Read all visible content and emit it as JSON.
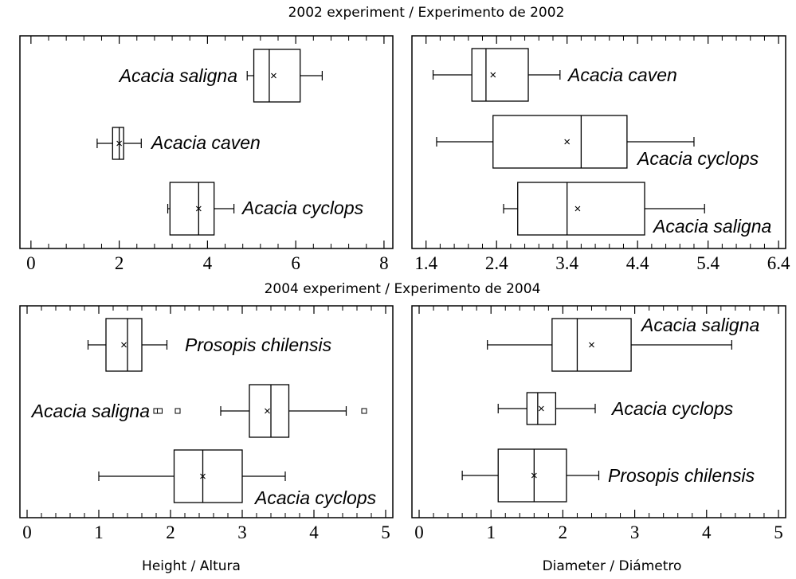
{
  "figure": {
    "top_caption": "2002 experiment / Experimento de 2002",
    "middle_caption": "2004 experiment / Experimento de 2004",
    "bottom_left_caption": "Height / Altura",
    "bottom_right_caption": "Diameter / Diámetro"
  },
  "chart_data": [
    {
      "type": "box",
      "panel": "2002-height",
      "xlim": [
        -0.25,
        8.2
      ],
      "xticks": [
        0,
        2,
        4,
        6,
        8
      ],
      "tick_labels": [
        "0",
        "2",
        "4",
        "6",
        "8"
      ],
      "minor_step": 0.4,
      "series": [
        {
          "name": "Acacia saligna",
          "min": 4.9,
          "q1": 5.05,
          "median": 5.4,
          "mean": 5.5,
          "q3": 6.1,
          "max": 6.6,
          "outliers": []
        },
        {
          "name": "Acacia caven",
          "min": 1.5,
          "q1": 1.85,
          "median": 2.0,
          "mean": 2.0,
          "q3": 2.1,
          "max": 2.5,
          "outliers": []
        },
        {
          "name": "Acacia cyclops",
          "min": 3.1,
          "q1": 3.15,
          "median": 3.8,
          "mean": 3.8,
          "q3": 4.15,
          "max": 4.6,
          "outliers": []
        }
      ]
    },
    {
      "type": "box",
      "panel": "2002-diameter",
      "xlim": [
        1.2,
        6.5
      ],
      "xticks": [
        1.4,
        2.4,
        3.4,
        4.4,
        5.4,
        6.4
      ],
      "tick_labels": [
        "1.4",
        "2.4",
        "3.4",
        "4.4",
        "5.4",
        "6.4"
      ],
      "minor_step": 0.2,
      "series": [
        {
          "name": "Acacia caven",
          "min": 1.5,
          "q1": 2.05,
          "median": 2.25,
          "mean": 2.35,
          "q3": 2.85,
          "max": 3.3,
          "outliers": []
        },
        {
          "name": "Acacia cyclops",
          "min": 1.55,
          "q1": 2.35,
          "median": 3.6,
          "mean": 3.4,
          "q3": 4.25,
          "max": 5.2,
          "outliers": []
        },
        {
          "name": "Acacia saligna",
          "min": 2.5,
          "q1": 2.7,
          "median": 3.4,
          "mean": 3.55,
          "q3": 4.5,
          "max": 5.35,
          "outliers": []
        }
      ]
    },
    {
      "type": "box",
      "panel": "2004-height",
      "xlim": [
        -0.1,
        5.1
      ],
      "xticks": [
        0,
        1,
        2,
        3,
        4,
        5
      ],
      "tick_labels": [
        "0",
        "1",
        "2",
        "3",
        "4",
        "5"
      ],
      "minor_step": 0.2,
      "series": [
        {
          "name": "Prosopis chilensis",
          "min": 0.85,
          "q1": 1.1,
          "median": 1.4,
          "mean": 1.35,
          "q3": 1.6,
          "max": 1.95,
          "outliers": []
        },
        {
          "name": "Acacia saligna",
          "min": 2.7,
          "q1": 3.1,
          "median": 3.4,
          "mean": 3.35,
          "q3": 3.65,
          "max": 4.45,
          "outliers": [
            1.8,
            1.85,
            2.1,
            4.7
          ]
        },
        {
          "name": "Acacia cyclops",
          "min": 1.0,
          "q1": 2.05,
          "median": 2.45,
          "mean": 2.45,
          "q3": 3.0,
          "max": 3.6,
          "outliers": []
        }
      ]
    },
    {
      "type": "box",
      "panel": "2004-diameter",
      "xlim": [
        -0.1,
        5.1
      ],
      "xticks": [
        0,
        1,
        2,
        3,
        4,
        5
      ],
      "tick_labels": [
        "0",
        "1",
        "2",
        "3",
        "4",
        "5"
      ],
      "minor_step": 0.2,
      "series": [
        {
          "name": "Acacia saligna",
          "min": 0.95,
          "q1": 1.85,
          "median": 2.2,
          "mean": 2.4,
          "q3": 2.95,
          "max": 4.35,
          "outliers": []
        },
        {
          "name": "Acacia cyclops",
          "min": 1.1,
          "q1": 1.5,
          "median": 1.65,
          "mean": 1.7,
          "q3": 1.9,
          "max": 2.45,
          "outliers": []
        },
        {
          "name": "Prosopis chilensis",
          "min": 0.6,
          "q1": 1.1,
          "median": 1.6,
          "mean": 1.6,
          "q3": 2.05,
          "max": 2.5,
          "outliers": []
        }
      ]
    }
  ]
}
